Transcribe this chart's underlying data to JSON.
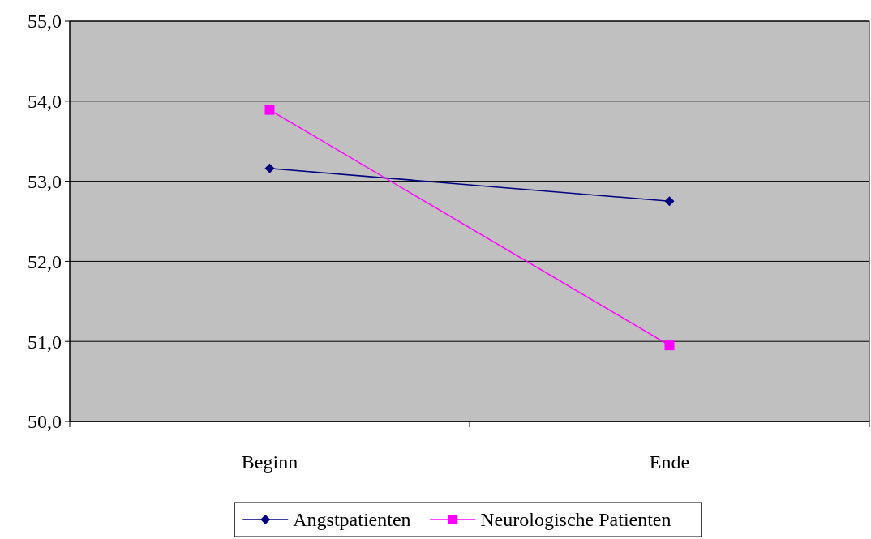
{
  "chart_data": {
    "type": "line",
    "categories": [
      "Beginn",
      "Ende"
    ],
    "series": [
      {
        "name": "Angstpatienten",
        "color": "#000080",
        "values": [
          53.16,
          52.75
        ],
        "marker": "diamond"
      },
      {
        "name": "Neurologische Patienten",
        "color": "#ff00ff",
        "values": [
          53.89,
          50.95
        ],
        "marker": "square"
      }
    ],
    "ylim": [
      50,
      55
    ],
    "yticks": [
      {
        "value": 50,
        "label": "50,0"
      },
      {
        "value": 51,
        "label": "51,0"
      },
      {
        "value": 52,
        "label": "52,0"
      },
      {
        "value": 53,
        "label": "53,0"
      },
      {
        "value": 54,
        "label": "54,0"
      },
      {
        "value": 55,
        "label": "55,0"
      }
    ],
    "grid": "y",
    "legend": "bottom",
    "line_style": "solid"
  }
}
